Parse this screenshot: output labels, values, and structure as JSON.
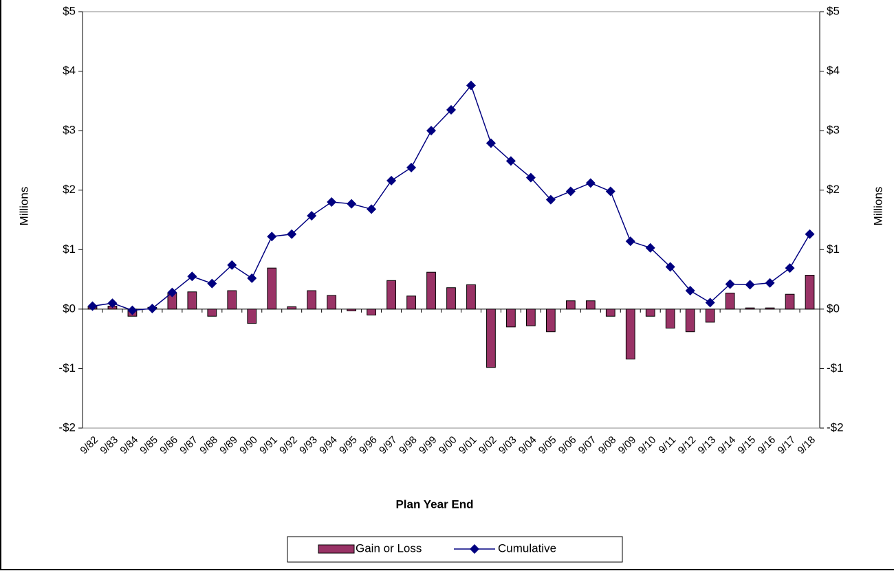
{
  "chart_data": {
    "type": "combo",
    "x_label": "Plan Year End",
    "y_label": "Millions",
    "y2_label": "Millions",
    "categories": [
      "9/82",
      "9/83",
      "9/84",
      "9/85",
      "9/86",
      "9/87",
      "9/88",
      "9/89",
      "9/90",
      "9/91",
      "9/92",
      "9/93",
      "9/94",
      "9/95",
      "9/96",
      "9/97",
      "9/98",
      "9/99",
      "9/00",
      "9/01",
      "9/02",
      "9/03",
      "9/04",
      "9/05",
      "9/06",
      "9/07",
      "9/08",
      "9/09",
      "9/10",
      "9/11",
      "9/12",
      "9/13",
      "9/14",
      "9/15",
      "9/16",
      "9/17",
      "9/18"
    ],
    "series": [
      {
        "name": "Gain or Loss",
        "type": "bar",
        "color": "#993366",
        "values": [
          0.05,
          0.05,
          -0.12,
          0.03,
          0.27,
          0.29,
          -0.12,
          0.31,
          -0.24,
          0.69,
          0.04,
          0.31,
          0.23,
          -0.03,
          -0.1,
          0.48,
          0.22,
          0.62,
          0.36,
          0.41,
          -0.98,
          -0.3,
          -0.28,
          -0.38,
          0.14,
          0.14,
          -0.12,
          -0.84,
          -0.12,
          -0.32,
          -0.38,
          -0.22,
          0.27,
          0.02,
          0.02,
          0.25,
          0.57
        ]
      },
      {
        "name": "Cumulative",
        "type": "line",
        "color": "#000080",
        "values": [
          0.05,
          0.1,
          -0.02,
          0.01,
          0.28,
          0.55,
          0.43,
          0.74,
          0.52,
          1.22,
          1.26,
          1.57,
          1.8,
          1.77,
          1.68,
          2.16,
          2.38,
          3.0,
          3.35,
          3.76,
          2.79,
          2.49,
          2.21,
          1.84,
          1.98,
          2.12,
          1.98,
          1.14,
          1.03,
          0.71,
          0.31,
          0.11,
          0.42,
          0.41,
          0.44,
          0.69,
          1.26
        ]
      }
    ],
    "ylim": [
      -2,
      5
    ],
    "yticks": [
      {
        "value": -2,
        "label": "-$2"
      },
      {
        "value": -1,
        "label": "-$1"
      },
      {
        "value": 0,
        "label": "$0"
      },
      {
        "value": 1,
        "label": "$1"
      },
      {
        "value": 2,
        "label": "$2"
      },
      {
        "value": 3,
        "label": "$3"
      },
      {
        "value": 4,
        "label": "$4"
      },
      {
        "value": 5,
        "label": "$5"
      }
    ],
    "y2lim": [
      -2,
      5
    ],
    "y2ticks": [
      {
        "value": -2,
        "label": "-$2"
      },
      {
        "value": -1,
        "label": "-$1"
      },
      {
        "value": 0,
        "label": "$0"
      },
      {
        "value": 1,
        "label": "$1"
      },
      {
        "value": 2,
        "label": "$2"
      },
      {
        "value": 3,
        "label": "$3"
      },
      {
        "value": 4,
        "label": "$4"
      },
      {
        "value": 5,
        "label": "$5"
      }
    ],
    "legend": "bottom"
  }
}
